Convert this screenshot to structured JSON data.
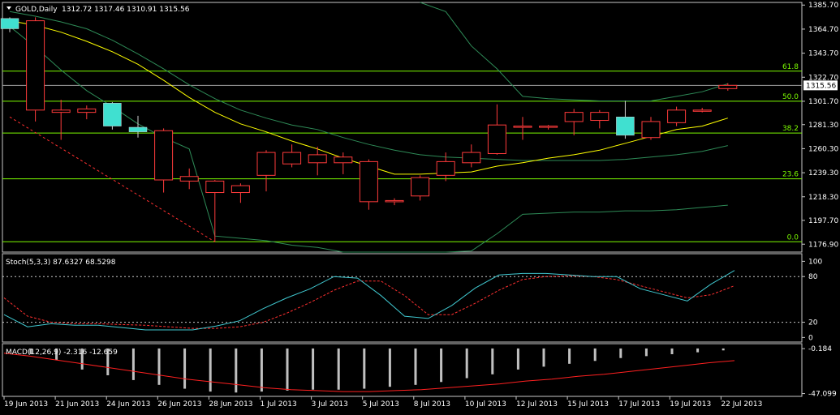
{
  "colors": {
    "background": "#000000",
    "frame": "#c8c8c8",
    "bull_candle_fill": "#40e0d0",
    "bear_candle": "#ff3b3b",
    "text": "#ffffff",
    "fib_line": "#7cfc00",
    "ma_yellow": "#ffff00",
    "bollinger": "#2e8b57",
    "stoch_main": "#40c8d0",
    "stoch_signal": "#ff3030",
    "macd_hist": "#c0c0c0",
    "macd_signal": "#ff2020"
  },
  "chart_data": [
    {
      "type": "candlestick",
      "title": "GOLD,Daily",
      "ohlc_header": "1312.72 1317.46 1310.91 1315.56",
      "current_price_label": "1315.56",
      "current_price": 1315.56,
      "ylim": [
        1170,
        1388
      ],
      "y_tick_labels": [
        "1385.70",
        "1364.70",
        "1343.70",
        "1322.70",
        "1301.70",
        "1281.30",
        "1260.30",
        "1239.30",
        "1218.30",
        "1197.70",
        "1176.90"
      ],
      "y_ticks": [
        1385.7,
        1364.7,
        1343.7,
        1322.7,
        1301.7,
        1281.3,
        1260.3,
        1239.3,
        1218.3,
        1197.7,
        1176.9
      ],
      "x_tick_labels": [
        "19 Jun 2013",
        "21 Jun 2013",
        "24 Jun 2013",
        "26 Jun 2013",
        "28 Jun 2013",
        "1 Jul 2013",
        "3 Jul 2013",
        "5 Jul 2013",
        "8 Jul 2013",
        "10 Jul 2013",
        "12 Jul 2013",
        "15 Jul 2013",
        "17 Jul 2013",
        "19 Jul 2013",
        "22 Jul 2013"
      ],
      "candles": [
        {
          "o": 1374,
          "h": 1375,
          "l": 1362,
          "c": 1365
        },
        {
          "o": 1294,
          "h": 1375,
          "l": 1284,
          "c": 1372
        },
        {
          "o": 1292,
          "h": 1303,
          "l": 1268,
          "c": 1294
        },
        {
          "o": 1292,
          "h": 1298,
          "l": 1286,
          "c": 1295
        },
        {
          "o": 1300,
          "h": 1301,
          "l": 1277,
          "c": 1280
        },
        {
          "o": 1279,
          "h": 1289,
          "l": 1270,
          "c": 1275
        },
        {
          "o": 1233,
          "h": 1278,
          "l": 1222,
          "c": 1276
        },
        {
          "o": 1232,
          "h": 1243,
          "l": 1225,
          "c": 1236
        },
        {
          "o": 1222,
          "h": 1233,
          "l": 1179,
          "c": 1232
        },
        {
          "o": 1222,
          "h": 1230,
          "l": 1213,
          "c": 1228
        },
        {
          "o": 1237,
          "h": 1259,
          "l": 1223,
          "c": 1257
        },
        {
          "o": 1247,
          "h": 1264,
          "l": 1244,
          "c": 1257
        },
        {
          "o": 1248,
          "h": 1262,
          "l": 1237,
          "c": 1255
        },
        {
          "o": 1248,
          "h": 1257,
          "l": 1238,
          "c": 1253
        },
        {
          "o": 1214,
          "h": 1251,
          "l": 1207,
          "c": 1249
        },
        {
          "o": 1214,
          "h": 1217,
          "l": 1211,
          "c": 1215
        },
        {
          "o": 1219,
          "h": 1237,
          "l": 1215,
          "c": 1235
        },
        {
          "o": 1237,
          "h": 1257,
          "l": 1232,
          "c": 1249
        },
        {
          "o": 1248,
          "h": 1264,
          "l": 1244,
          "c": 1257
        },
        {
          "o": 1256,
          "h": 1299,
          "l": 1255,
          "c": 1281
        },
        {
          "o": 1279,
          "h": 1288,
          "l": 1268,
          "c": 1280
        },
        {
          "o": 1279,
          "h": 1281,
          "l": 1277,
          "c": 1280
        },
        {
          "o": 1284,
          "h": 1295,
          "l": 1272,
          "c": 1292
        },
        {
          "o": 1285,
          "h": 1294,
          "l": 1278,
          "c": 1292
        },
        {
          "o": 1288,
          "h": 1302,
          "l": 1269,
          "c": 1272
        },
        {
          "o": 1270,
          "h": 1288,
          "l": 1268,
          "c": 1284
        },
        {
          "o": 1283,
          "h": 1297,
          "l": 1280,
          "c": 1294
        },
        {
          "o": 1293,
          "h": 1296,
          "l": 1292,
          "c": 1294
        },
        {
          "o": 1312.72,
          "h": 1317.46,
          "l": 1310.91,
          "c": 1315.56
        }
      ],
      "bull_direction_note": "",
      "ma_yellow": [
        1372,
        1368,
        1362,
        1354,
        1345,
        1334,
        1320,
        1305,
        1292,
        1282,
        1275,
        1267,
        1260,
        1252,
        1245,
        1238,
        1238,
        1239,
        1240,
        1245,
        1248,
        1252,
        1255,
        1259,
        1265,
        1271,
        1277,
        1280,
        1287
      ],
      "bb_upper": [
        null,
        null,
        null,
        null,
        null,
        null,
        null,
        null,
        null,
        null,
        null,
        null,
        null,
        null,
        null,
        null,
        1413,
        1380,
        1350,
        1330,
        1306,
        1304,
        1303,
        1302,
        1302,
        1302,
        1306,
        1310,
        1317
      ],
      "bb_middle": [
        1380,
        1376,
        1371,
        1365,
        1355,
        1343,
        1330,
        1316,
        1304,
        1294,
        1287,
        1281,
        1277,
        1270,
        1264,
        1259,
        1255,
        1253,
        1252,
        1251,
        1250,
        1250,
        1250,
        1250,
        1251,
        1253,
        1255,
        1258,
        1263
      ],
      "bb_lower": [
        1367,
        1349,
        1329,
        1311,
        1297,
        1282,
        1270,
        1260,
        1184,
        1182,
        1180,
        1176,
        1174,
        1170,
        1168,
        1166,
        1166,
        1168,
        1171,
        1186,
        1203,
        1204,
        1205,
        1205,
        1206,
        1206,
        1207,
        1209,
        1211
      ],
      "bb_lower_offscreen_note": "",
      "trend_dashed": {
        "from_index": 0,
        "from_value": 1288,
        "to_index": 8,
        "to_value": 1179
      },
      "fib_levels": [
        {
          "label": "61.8",
          "value": 1328
        },
        {
          "label": "50.0",
          "value": 1301.7
        },
        {
          "label": "38.2",
          "value": 1274
        },
        {
          "label": "23.6",
          "value": 1234
        },
        {
          "label": "0.0",
          "value": 1179
        }
      ]
    },
    {
      "type": "line",
      "title": "Stoch(5,3,3) 87.6327 68.5298",
      "ylim": [
        -6,
        110
      ],
      "y_tick_labels": [
        "100",
        "80",
        "20",
        "0"
      ],
      "y_ticks": [
        100,
        80,
        20,
        0
      ],
      "levels": [
        80,
        20
      ],
      "series": [
        {
          "name": "main",
          "values": [
            30,
            14,
            18,
            16,
            16,
            13,
            10,
            10,
            10,
            15,
            22,
            38,
            52,
            64,
            80,
            78,
            55,
            28,
            25,
            42,
            65,
            82,
            84,
            84,
            82,
            80,
            80,
            64,
            56,
            48,
            70,
            88
          ]
        },
        {
          "name": "signal",
          "values": [
            52,
            28,
            20,
            18,
            18,
            17,
            16,
            14,
            12,
            12,
            14,
            20,
            32,
            46,
            62,
            74,
            74,
            55,
            30,
            30,
            45,
            62,
            76,
            80,
            81,
            80,
            76,
            68,
            60,
            52,
            56,
            68
          ]
        }
      ]
    },
    {
      "type": "bar",
      "title": "MACD(12,26,9) -2.316 -12.659",
      "ylim": [
        -50,
        5
      ],
      "y_tick_labels": [
        "-0.184",
        "-47.099"
      ],
      "y_ticks": [
        -0.184,
        -47.099
      ],
      "histogram": [
        -6,
        -12,
        -22,
        -28,
        -33,
        -38,
        -42,
        -45,
        -46,
        -45,
        -44,
        -43,
        -43,
        -42,
        -40,
        -38,
        -35,
        -31,
        -27,
        -22,
        -19,
        -16,
        -13,
        -10,
        -8,
        -6,
        -4,
        -2
      ],
      "signal": [
        -5,
        -8,
        -12,
        -16,
        -20,
        -24,
        -28,
        -32,
        -35,
        -38,
        -41,
        -43,
        -44,
        -45,
        -45,
        -44,
        -43,
        -41,
        -39,
        -37,
        -34,
        -32,
        -29,
        -27,
        -24,
        -21,
        -18,
        -15,
        -12.659
      ]
    }
  ]
}
